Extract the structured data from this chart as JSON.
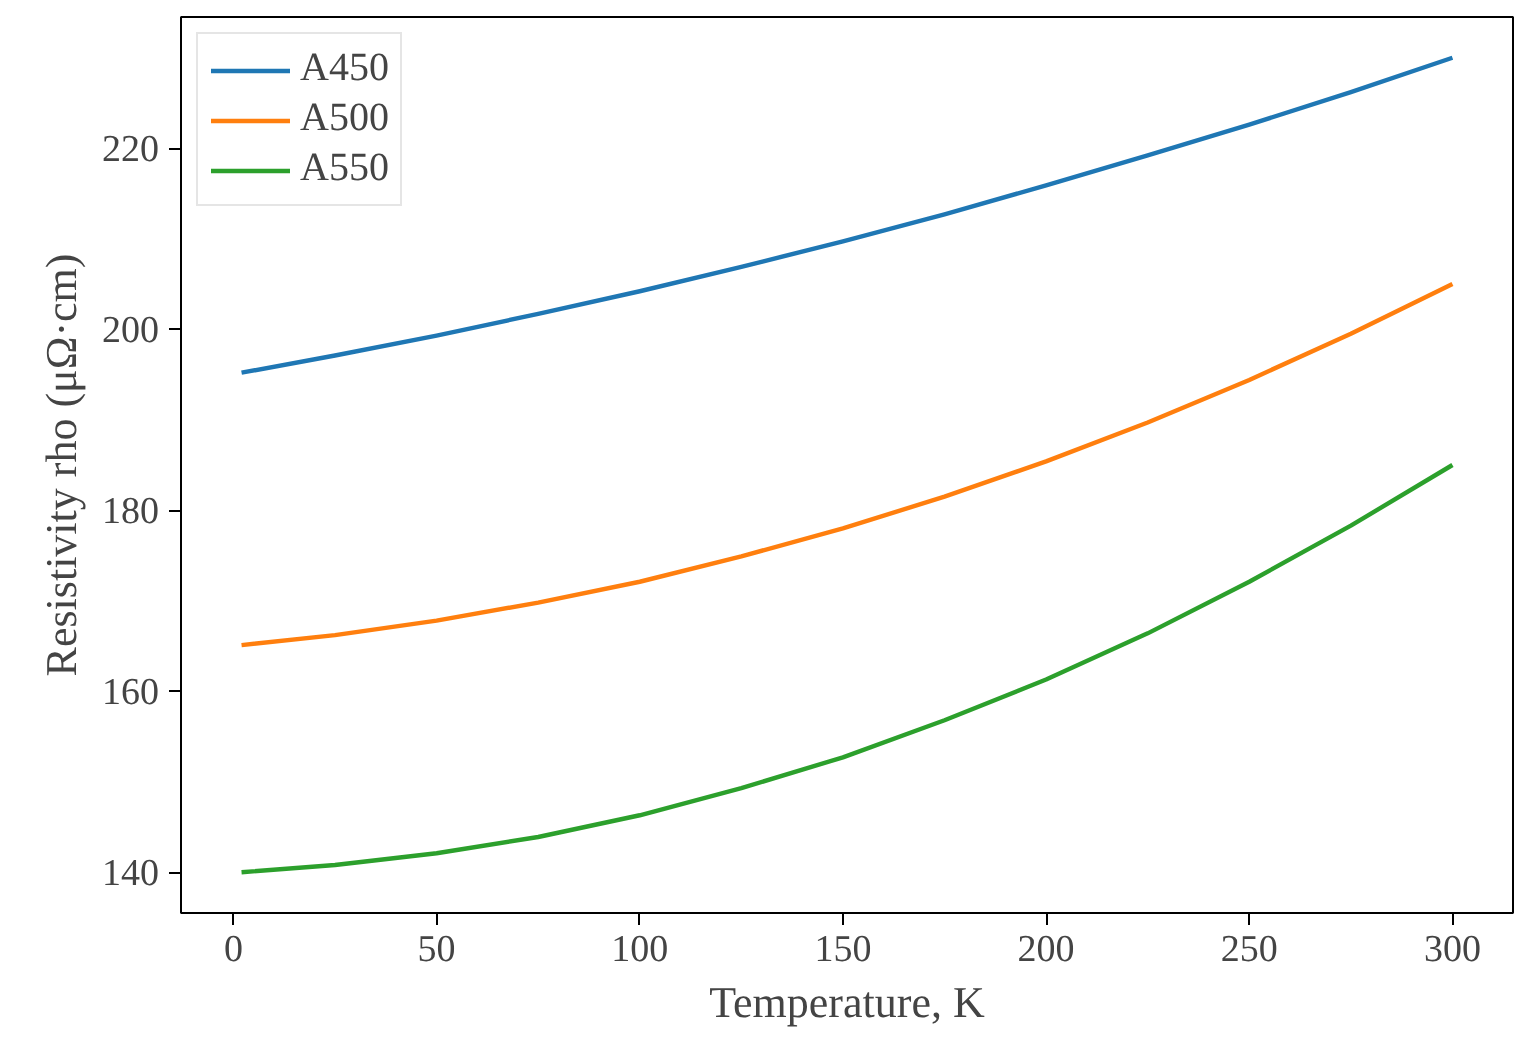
{
  "chart_data": {
    "type": "line",
    "xlabel": "Temperature, K",
    "ylabel": "Resistivity rho (μΩ·cm)",
    "x": [
      2,
      25,
      50,
      75,
      100,
      125,
      150,
      175,
      200,
      225,
      250,
      275,
      300
    ],
    "series": [
      {
        "name": "A450",
        "color": "#1f77b4",
        "values": [
          195.2,
          197.1,
          199.3,
          201.7,
          204.2,
          206.9,
          209.7,
          212.7,
          215.9,
          219.2,
          222.6,
          226.2,
          230.0
        ]
      },
      {
        "name": "A500",
        "color": "#ff7f0e",
        "values": [
          165.1,
          166.2,
          167.8,
          169.8,
          172.1,
          174.9,
          178.0,
          181.5,
          185.4,
          189.7,
          194.4,
          199.5,
          205.0
        ]
      },
      {
        "name": "A550",
        "color": "#2ca02c",
        "values": [
          140.0,
          140.8,
          142.1,
          143.9,
          146.3,
          149.3,
          152.7,
          156.8,
          161.3,
          166.4,
          172.1,
          178.3,
          185.0
        ]
      }
    ],
    "xlim": [
      -12.9,
      314.9
    ],
    "ylim": [
      135.5,
      234.5
    ],
    "xticks": [
      0,
      50,
      100,
      150,
      200,
      250,
      300
    ],
    "yticks": [
      140,
      160,
      180,
      200,
      220
    ],
    "grid": false,
    "legend": "top left",
    "line_style": "solid",
    "marker": "none"
  }
}
